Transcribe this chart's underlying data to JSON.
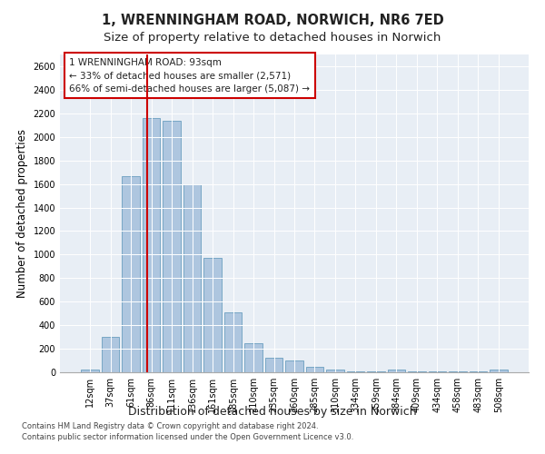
{
  "title": "1, WRENNINGHAM ROAD, NORWICH, NR6 7ED",
  "subtitle": "Size of property relative to detached houses in Norwich",
  "xlabel": "Distribution of detached houses by size in Norwich",
  "ylabel": "Number of detached properties",
  "categories": [
    "12sqm",
    "37sqm",
    "61sqm",
    "86sqm",
    "111sqm",
    "136sqm",
    "161sqm",
    "185sqm",
    "210sqm",
    "235sqm",
    "260sqm",
    "285sqm",
    "310sqm",
    "334sqm",
    "359sqm",
    "384sqm",
    "409sqm",
    "434sqm",
    "458sqm",
    "483sqm",
    "508sqm"
  ],
  "values": [
    20,
    300,
    1670,
    2160,
    2140,
    1600,
    975,
    510,
    245,
    120,
    100,
    45,
    20,
    10,
    5,
    20,
    5,
    5,
    5,
    5,
    20
  ],
  "bar_color": "#aec6df",
  "bar_edge_color": "#6b9fc0",
  "marker_color": "#cc0000",
  "annotation_text": "1 WRENNINGHAM ROAD: 93sqm\n← 33% of detached houses are smaller (2,571)\n66% of semi-detached houses are larger (5,087) →",
  "annotation_box_color": "#ffffff",
  "annotation_box_edge": "#cc0000",
  "ylim": [
    0,
    2700
  ],
  "yticks": [
    0,
    200,
    400,
    600,
    800,
    1000,
    1200,
    1400,
    1600,
    1800,
    2000,
    2200,
    2400,
    2600
  ],
  "footer1": "Contains HM Land Registry data © Crown copyright and database right 2024.",
  "footer2": "Contains public sector information licensed under the Open Government Licence v3.0.",
  "bg_color": "#e8eef5",
  "fig_bg_color": "#ffffff",
  "title_fontsize": 10.5,
  "subtitle_fontsize": 9.5,
  "tick_fontsize": 7,
  "ylabel_fontsize": 8.5,
  "xlabel_fontsize": 9,
  "footer_fontsize": 6.0
}
